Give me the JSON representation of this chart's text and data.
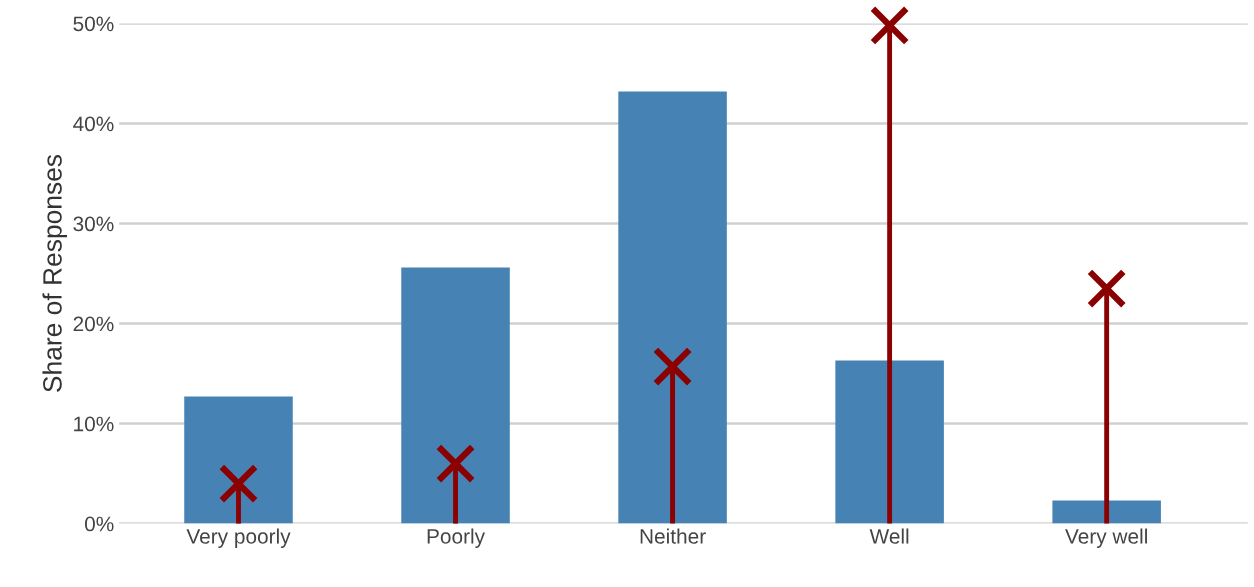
{
  "chart_data": {
    "type": "bar",
    "ylabel": "Share of Responses",
    "categories": [
      "Very poorly",
      "Poorly",
      "Neither",
      "Well",
      "Very well"
    ],
    "series": [
      {
        "color": "#4682b4",
        "values": [
          12.7,
          25.6,
          43.2,
          16.3,
          2.3
        ]
      },
      {
        "type": "lollipop",
        "color": "#8b0000",
        "marker": "cross",
        "values": [
          4.0,
          6.0,
          15.7,
          49.8,
          23.5
        ]
      }
    ],
    "ylim": [
      0,
      50
    ],
    "yticks": [
      {
        "value": 0,
        "label": "0%"
      },
      {
        "value": 10,
        "label": "10%"
      },
      {
        "value": 20,
        "label": "20%"
      },
      {
        "value": 30,
        "label": "30%"
      },
      {
        "value": 40,
        "label": "40%"
      },
      {
        "value": 50,
        "label": "50%"
      }
    ],
    "grid": "y",
    "legend": false
  }
}
